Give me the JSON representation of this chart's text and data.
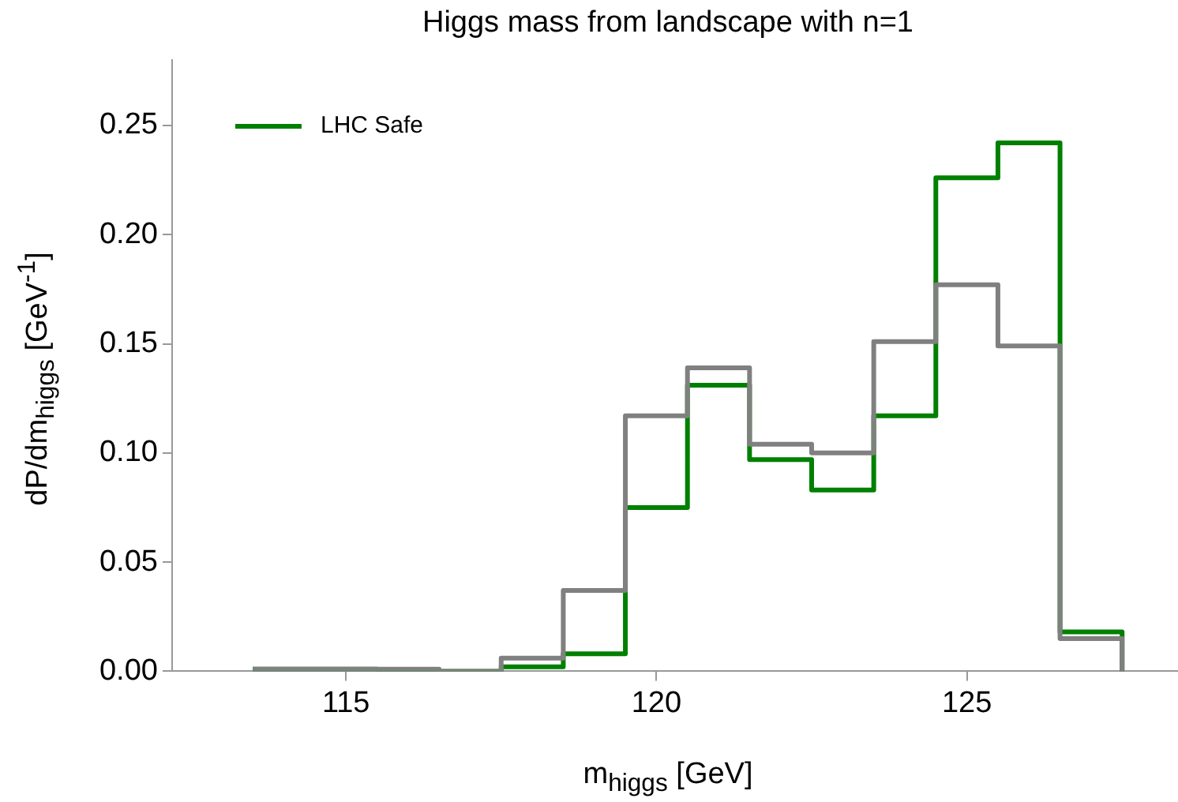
{
  "chart_data": {
    "type": "histogram",
    "title": "Higgs mass from landscape with n=1",
    "xlabel": "m$_{higgs}$ [GeV]",
    "ylabel": "dP/dm$_{higgs}$ [GeV$^{-1}$]",
    "bins": [
      113.5,
      114.5,
      115.5,
      116.5,
      117.5,
      118.5,
      119.5,
      120.5,
      121.5,
      122.5,
      123.5,
      124.5,
      125.5,
      126.5,
      127.5
    ],
    "series": [
      {
        "color": "#808080",
        "values": [
          0.001,
          0.001,
          0.001,
          0,
          0.006,
          0.037,
          0.117,
          0.139,
          0.104,
          0.1,
          0.151,
          0.177,
          0.149,
          0.015
        ]
      },
      {
        "name": "LHC Safe",
        "color": "#008000",
        "values": [
          0.001,
          0.001,
          0.0005,
          0,
          0.002,
          0.008,
          0.075,
          0.131,
          0.097,
          0.083,
          0.117,
          0.226,
          0.242,
          0.018
        ]
      }
    ],
    "xlim": [
      112.2,
      128.4
    ],
    "xticks": [
      115,
      120,
      125
    ],
    "ylim": [
      0,
      0.28
    ],
    "yticks": [
      {
        "value": 0,
        "label": "0.00"
      },
      {
        "value": 0.05,
        "label": "0.05"
      },
      {
        "value": 0.1,
        "label": "0.10"
      },
      {
        "value": 0.15,
        "label": "0.15"
      },
      {
        "value": 0.2,
        "label": "0.20"
      },
      {
        "value": 0.25,
        "label": "0.25"
      }
    ],
    "legend": "top left",
    "grid": false
  }
}
